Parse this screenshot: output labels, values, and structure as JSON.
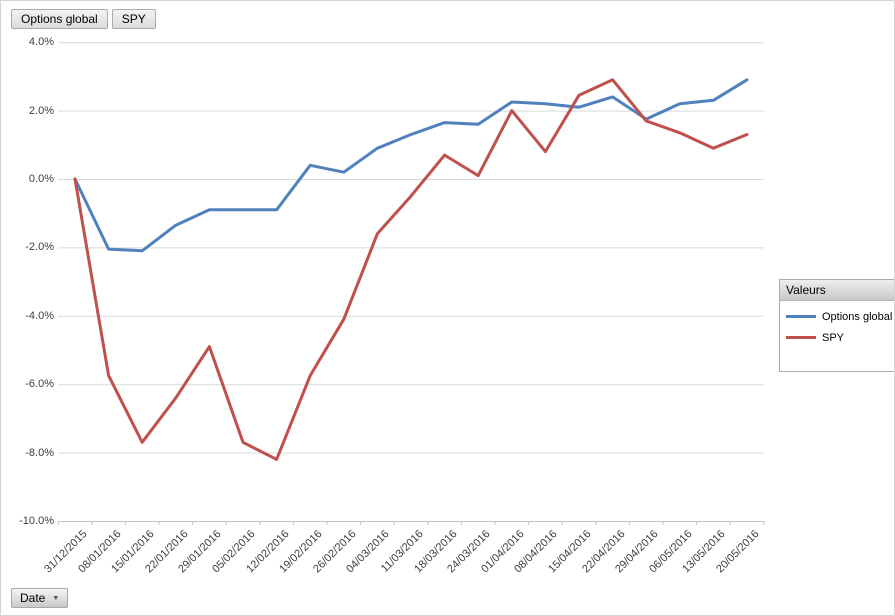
{
  "field_buttons": [
    {
      "label": "Options global"
    },
    {
      "label": "SPY"
    }
  ],
  "axis_button": {
    "label": "Date",
    "caret": "▼"
  },
  "legend": {
    "title": "Valeurs",
    "items": [
      {
        "label": "Options global",
        "color": "#4F81BD"
      },
      {
        "label": "SPY",
        "color": "#C0504D"
      }
    ]
  },
  "colors": {
    "series_blue": "#4F81BD",
    "series_red": "#C0504D",
    "gridline": "#d9d9d9",
    "axis_line": "#c2c2c2",
    "axis_text": "#3d3d3d"
  },
  "chart_data": {
    "type": "line",
    "title": "",
    "xlabel": "",
    "ylabel": "",
    "grid": true,
    "legend_position": "right",
    "ylim": [
      -10.0,
      4.0
    ],
    "y_ticks": [
      4.0,
      2.0,
      0.0,
      -2.0,
      -4.0,
      -6.0,
      -8.0,
      -10.0
    ],
    "y_tick_labels": [
      "4.0%",
      "2.0%",
      "0.0%",
      "-2.0%",
      "-4.0%",
      "-6.0%",
      "-8.0%",
      "-10.0%"
    ],
    "categories": [
      "31/12/2015",
      "08/01/2016",
      "15/01/2016",
      "22/01/2016",
      "29/01/2016",
      "05/02/2016",
      "12/02/2016",
      "19/02/2016",
      "26/02/2016",
      "04/03/2016",
      "11/03/2016",
      "18/03/2016",
      "24/03/2016",
      "01/04/2016",
      "08/04/2016",
      "15/04/2016",
      "22/04/2016",
      "29/04/2016",
      "06/05/2016",
      "13/05/2016",
      "20/05/2016"
    ],
    "series": [
      {
        "name": "Options global",
        "color": "#4F81BD",
        "values": [
          0.0,
          -2.05,
          -2.1,
          -1.35,
          -0.9,
          -0.9,
          -0.9,
          0.4,
          0.2,
          0.9,
          1.3,
          1.65,
          1.6,
          2.25,
          2.2,
          2.1,
          2.4,
          1.75,
          2.2,
          2.3,
          2.9
        ]
      },
      {
        "name": "SPY",
        "color": "#C0504D",
        "values": [
          0.0,
          -5.75,
          -7.7,
          -6.4,
          -4.9,
          -7.7,
          -8.2,
          -5.75,
          -4.1,
          -1.6,
          -0.5,
          0.7,
          0.1,
          2.0,
          0.8,
          2.45,
          2.9,
          1.7,
          1.35,
          0.9,
          1.3
        ]
      }
    ]
  }
}
